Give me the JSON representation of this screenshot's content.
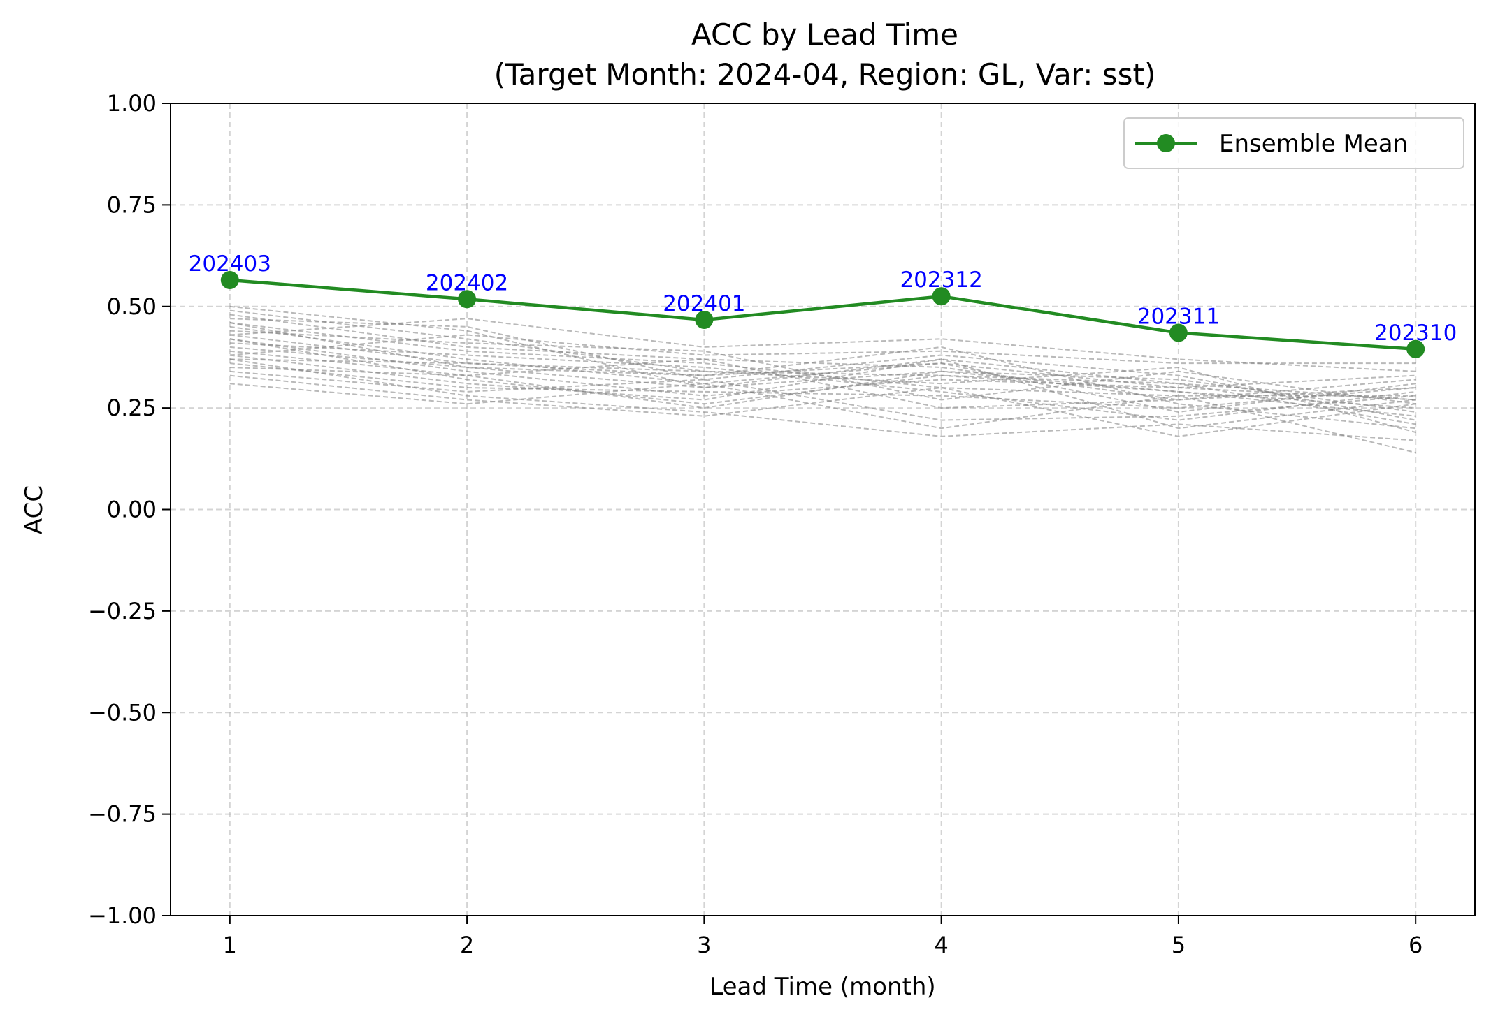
{
  "chart_data": {
    "type": "line",
    "title": "ACC by Lead Time",
    "subtitle": "(Target Month: 2024-04, Region: GL, Var: sst)",
    "xlabel": "Lead Time (month)",
    "ylabel": "ACC",
    "x": [
      1,
      2,
      3,
      4,
      5,
      6
    ],
    "xlim": [
      0.75,
      6.25
    ],
    "ylim": [
      -1.0,
      1.0
    ],
    "x_ticks": [
      "1",
      "2",
      "3",
      "4",
      "5",
      "6"
    ],
    "y_ticks": [
      "1.00",
      "0.75",
      "0.50",
      "0.25",
      "0.00",
      "−0.25",
      "−0.50",
      "−0.75",
      "−1.00"
    ],
    "y_tick_values": [
      1.0,
      0.75,
      0.5,
      0.25,
      0.0,
      -0.25,
      -0.5,
      -0.75,
      -1.0
    ],
    "grid": true,
    "legend_position": "top-right",
    "series": [
      {
        "name": "Ensemble Mean",
        "color": "#228B22",
        "values": [
          0.565,
          0.518,
          0.467,
          0.525,
          0.435,
          0.395
        ],
        "point_labels": [
          "202403",
          "202402",
          "202401",
          "202312",
          "202311",
          "202310"
        ]
      }
    ],
    "member_color": "#808080",
    "members": [
      [
        0.5,
        0.44,
        0.3,
        0.37,
        0.31,
        0.27
      ],
      [
        0.49,
        0.42,
        0.34,
        0.33,
        0.29,
        0.25
      ],
      [
        0.48,
        0.4,
        0.37,
        0.35,
        0.27,
        0.3
      ],
      [
        0.47,
        0.45,
        0.32,
        0.38,
        0.33,
        0.22
      ],
      [
        0.46,
        0.39,
        0.36,
        0.3,
        0.28,
        0.28
      ],
      [
        0.45,
        0.37,
        0.31,
        0.36,
        0.24,
        0.31
      ],
      [
        0.44,
        0.41,
        0.39,
        0.27,
        0.34,
        0.26
      ],
      [
        0.43,
        0.36,
        0.33,
        0.4,
        0.26,
        0.2
      ],
      [
        0.42,
        0.34,
        0.28,
        0.32,
        0.3,
        0.33
      ],
      [
        0.41,
        0.38,
        0.35,
        0.29,
        0.22,
        0.29
      ],
      [
        0.4,
        0.35,
        0.3,
        0.34,
        0.32,
        0.24
      ],
      [
        0.39,
        0.33,
        0.37,
        0.25,
        0.27,
        0.32
      ],
      [
        0.38,
        0.31,
        0.27,
        0.37,
        0.2,
        0.27
      ],
      [
        0.37,
        0.36,
        0.34,
        0.31,
        0.35,
        0.19
      ],
      [
        0.36,
        0.3,
        0.29,
        0.28,
        0.25,
        0.3
      ],
      [
        0.35,
        0.33,
        0.25,
        0.34,
        0.29,
        0.23
      ],
      [
        0.34,
        0.29,
        0.32,
        0.22,
        0.23,
        0.28
      ],
      [
        0.33,
        0.27,
        0.23,
        0.3,
        0.18,
        0.26
      ],
      [
        0.31,
        0.26,
        0.31,
        0.2,
        0.28,
        0.14
      ],
      [
        0.43,
        0.47,
        0.4,
        0.42,
        0.37,
        0.34
      ],
      [
        0.38,
        0.43,
        0.38,
        0.39,
        0.36,
        0.36
      ],
      [
        0.42,
        0.32,
        0.26,
        0.33,
        0.31,
        0.21
      ],
      [
        0.37,
        0.28,
        0.24,
        0.18,
        0.21,
        0.17
      ],
      [
        0.46,
        0.35,
        0.33,
        0.36,
        0.3,
        0.27
      ]
    ]
  }
}
